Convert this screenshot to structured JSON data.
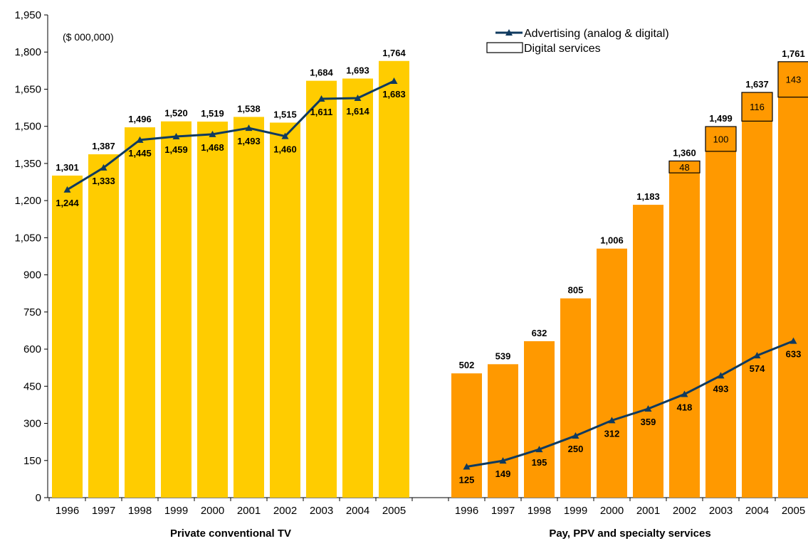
{
  "chart_data": {
    "type": "bar",
    "unit_label": "($ 000,000)",
    "ylim": [
      0,
      1950
    ],
    "yticks": [
      0,
      150,
      300,
      450,
      600,
      750,
      900,
      1050,
      1200,
      1350,
      1500,
      1650,
      1800,
      1950
    ],
    "ytick_labels": [
      "0",
      "150",
      "300",
      "450",
      "600",
      "750",
      "900",
      "1,050",
      "1,200",
      "1,350",
      "1,500",
      "1,650",
      "1,800",
      "1,950"
    ],
    "grid": false,
    "legend_position": "top-right",
    "legend": {
      "line_series": "Advertising (analog & digital)",
      "box_series": "Digital services"
    },
    "groups": [
      {
        "name": "Private conventional TV",
        "bar_color": "#FFCC00",
        "categories": [
          "1996",
          "1997",
          "1998",
          "1999",
          "2000",
          "2001",
          "2002",
          "2003",
          "2004",
          "2005"
        ],
        "totals": [
          1301,
          1387,
          1496,
          1520,
          1519,
          1538,
          1515,
          1684,
          1693,
          1764
        ],
        "total_labels": [
          "1,301",
          "1,387",
          "1,496",
          "1,520",
          "1,519",
          "1,538",
          "1,515",
          "1,684",
          "1,693",
          "1,764"
        ],
        "advertising": [
          1244,
          1333,
          1445,
          1459,
          1468,
          1493,
          1460,
          1611,
          1614,
          1683
        ],
        "advertising_labels": [
          "1,244",
          "1,333",
          "1,445",
          "1,459",
          "1,468",
          "1,493",
          "1,460",
          "1,611",
          "1,614",
          "1,683"
        ],
        "digital": [
          null,
          null,
          null,
          null,
          null,
          null,
          null,
          null,
          null,
          null
        ],
        "digital_labels": [
          null,
          null,
          null,
          null,
          null,
          null,
          null,
          null,
          null,
          null
        ]
      },
      {
        "name": "Pay, PPV and specialty services",
        "bar_color": "#FF9900",
        "categories": [
          "1996",
          "1997",
          "1998",
          "1999",
          "2000",
          "2001",
          "2002",
          "2003",
          "2004",
          "2005"
        ],
        "totals": [
          502,
          539,
          632,
          805,
          1006,
          1183,
          1360,
          1499,
          1637,
          1761
        ],
        "total_labels": [
          "502",
          "539",
          "632",
          "805",
          "1,006",
          "1,183",
          "1,360",
          "1,499",
          "1,637",
          "1,761"
        ],
        "advertising": [
          125,
          149,
          195,
          250,
          312,
          359,
          418,
          493,
          574,
          633
        ],
        "advertising_labels": [
          "125",
          "149",
          "195",
          "250",
          "312",
          "359",
          "418",
          "493",
          "574",
          "633"
        ],
        "digital": [
          null,
          null,
          null,
          null,
          null,
          null,
          48,
          100,
          116,
          143
        ],
        "digital_labels": [
          null,
          null,
          null,
          null,
          null,
          null,
          "48",
          "100",
          "116",
          "143"
        ]
      }
    ],
    "line_color": "#0F3A5F"
  }
}
